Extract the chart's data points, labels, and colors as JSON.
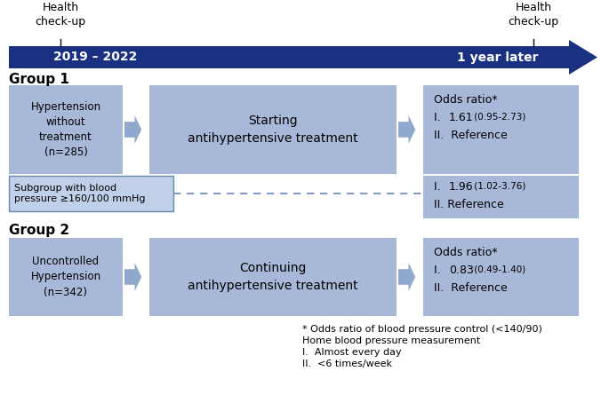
{
  "box_color": "#a8b8d8",
  "box_color_subgroup": "#c0d0e8",
  "arrow_color": "#8fa8cc",
  "timeline_color": "#1a3080",
  "health_checkup_left": "Health\ncheck-up",
  "health_checkup_right": "Health\ncheck-up",
  "timeline_left": "2019 – 2022",
  "timeline_right": "1 year later",
  "group1_label": "Group 1",
  "group2_label": "Group 2",
  "group1_box1": "Hypertension\nwithout\ntreatment\n(n=285)",
  "group1_box2": "Starting\nantihypertensive treatment",
  "group1_box3_title": "Odds ratio*",
  "group1_box3_line2_main": "1.61",
  "group1_box3_line2_ci": " (0.95-2.73)",
  "group1_box3_line3": "II.  Reference",
  "subgroup_box1_line1": "Subgroup with blood",
  "subgroup_box1_line2": "pressure ≥160/100 mmHg",
  "subgroup_box3_main": "1.96",
  "subgroup_box3_ci": " (1.02-3.76)",
  "subgroup_box3_line2": "II. Reference",
  "group2_box1": "Uncontrolled\nHypertension\n(n=342)",
  "group2_box2": "Continuing\nantihypertensive treatment",
  "group2_box3_title": "Odds ratio*",
  "group2_box3_line2_main": "0.83",
  "group2_box3_line2_ci": " (0.49-1.40)",
  "group2_box3_line3": "II.  Reference",
  "footnote1": "* Odds ratio of blood pressure control (<140/90)",
  "footnote2": "Home blood pressure measurement",
  "footnote3": "I.  Almost every day",
  "footnote4": "II.  <6 times/week"
}
